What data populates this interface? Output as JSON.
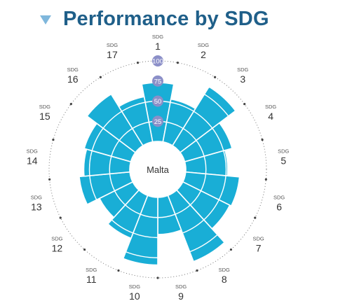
{
  "header": {
    "title": "Performance by SDG",
    "collapse_icon": "triangle-down-icon"
  },
  "colors": {
    "bar": "#19aed6",
    "title": "#1f5f89",
    "scale_badge": "#8b8fc8",
    "ring": "#777777"
  },
  "chart_data": {
    "type": "polar-bar",
    "center_label": "Malta",
    "radial_range": [
      0,
      100
    ],
    "radial_ticks": [
      25,
      50,
      75,
      100
    ],
    "category_prefix": "SDG",
    "categories": [
      "1",
      "2",
      "3",
      "4",
      "5",
      "6",
      "7",
      "8",
      "9",
      "10",
      "11",
      "12",
      "13",
      "14",
      "15",
      "16",
      "17"
    ],
    "values": [
      73,
      54,
      86,
      61,
      52,
      67,
      65,
      88,
      46,
      84,
      57,
      46,
      63,
      57,
      60,
      76,
      57
    ]
  }
}
